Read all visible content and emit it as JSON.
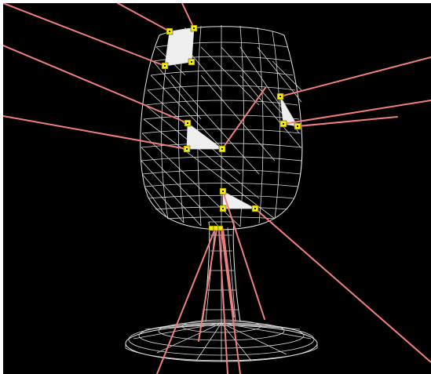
{
  "viewport": {
    "background": "#000000",
    "mesh_color": "#d9d9d9",
    "selected_face_color": "#efefef",
    "ray_color": "#f07f7f",
    "handle_color": "#f5ea0a"
  },
  "scene": {
    "object": "wine-glass-wireframe",
    "selected_faces": 5,
    "vertex_handles": 16,
    "rays": 14
  }
}
